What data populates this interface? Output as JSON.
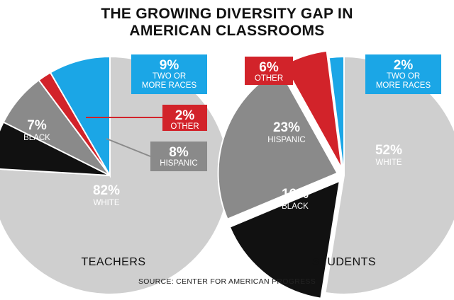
{
  "title_lines": [
    "THE GROWING DIVERSITY GAP IN",
    "AMERICAN CLASSROOMS"
  ],
  "source": "SOURCE: CENTER FOR AMERICAN PROGRESS",
  "colors": {
    "white": "#cfcfcf",
    "black": "#111111",
    "hispanic": "#8a8a8a",
    "other": "#d2232a",
    "two_or_more": "#1ba6e6"
  },
  "chart_data": [
    {
      "type": "pie",
      "title": "TEACHERS",
      "slices": [
        {
          "key": "white",
          "pct": "82%",
          "label": "WHITE",
          "value": 82
        },
        {
          "key": "black",
          "pct": "7%",
          "label": "BLACK",
          "value": 7
        },
        {
          "key": "hispanic",
          "pct": "8%",
          "label": "HISPANIC",
          "value": 8
        },
        {
          "key": "other",
          "pct": "2%",
          "label": "OTHER",
          "value": 2
        },
        {
          "key": "two_or_more",
          "pct": "9%",
          "label": "TWO OR\nMORE RACES",
          "value": 9
        }
      ]
    },
    {
      "type": "pie",
      "title": "STUDENTS",
      "slices": [
        {
          "key": "white",
          "pct": "52%",
          "label": "WHITE",
          "value": 52
        },
        {
          "key": "black",
          "pct": "16%",
          "label": "BLACK",
          "value": 16
        },
        {
          "key": "hispanic",
          "pct": "23%",
          "label": "HISPANIC",
          "value": 23
        },
        {
          "key": "other",
          "pct": "6%",
          "label": "OTHER",
          "value": 6
        },
        {
          "key": "two_or_more",
          "pct": "2%",
          "label": "TWO OR\nMORE RACES",
          "value": 2
        }
      ]
    }
  ]
}
